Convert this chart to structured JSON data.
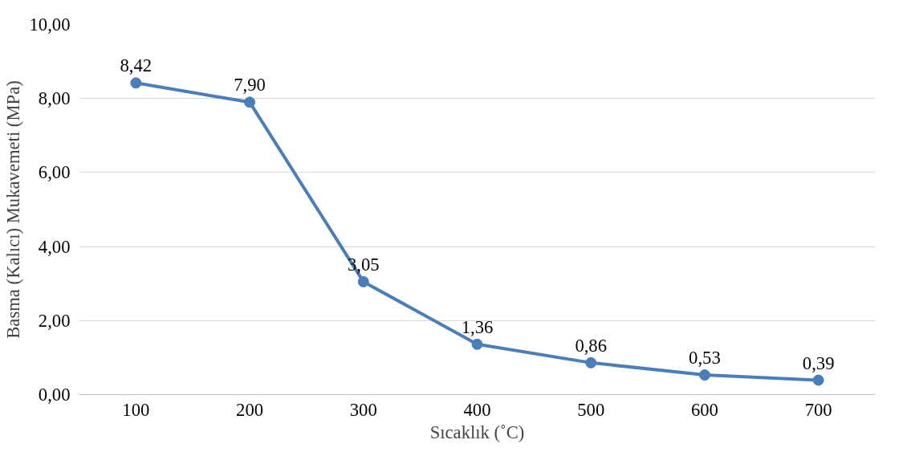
{
  "chart_data": {
    "type": "line",
    "xlabel": "Sıcaklık (˚C)",
    "ylabel": "Basma (Kalıcı) Mukavemeti (MPa)",
    "categories": [
      "100",
      "200",
      "300",
      "400",
      "500",
      "600",
      "700"
    ],
    "series": [
      {
        "color": "#4a7ebb",
        "values": [
          8.42,
          7.9,
          3.05,
          1.36,
          0.86,
          0.53,
          0.39
        ],
        "value_labels": [
          "8,42",
          "7,90",
          "3,05",
          "1,36",
          "0,86",
          "0,53",
          "0,39"
        ]
      }
    ],
    "ylim": [
      0,
      10
    ],
    "yticks": [
      {
        "value": 0,
        "label": "0,00"
      },
      {
        "value": 2,
        "label": "2,00"
      },
      {
        "value": 4,
        "label": "4,00"
      },
      {
        "value": 6,
        "label": "6,00"
      },
      {
        "value": 8,
        "label": "8,00"
      },
      {
        "value": 10,
        "label": "10,00"
      }
    ],
    "grid": "y",
    "marker": "circle",
    "line_style": "solid"
  }
}
